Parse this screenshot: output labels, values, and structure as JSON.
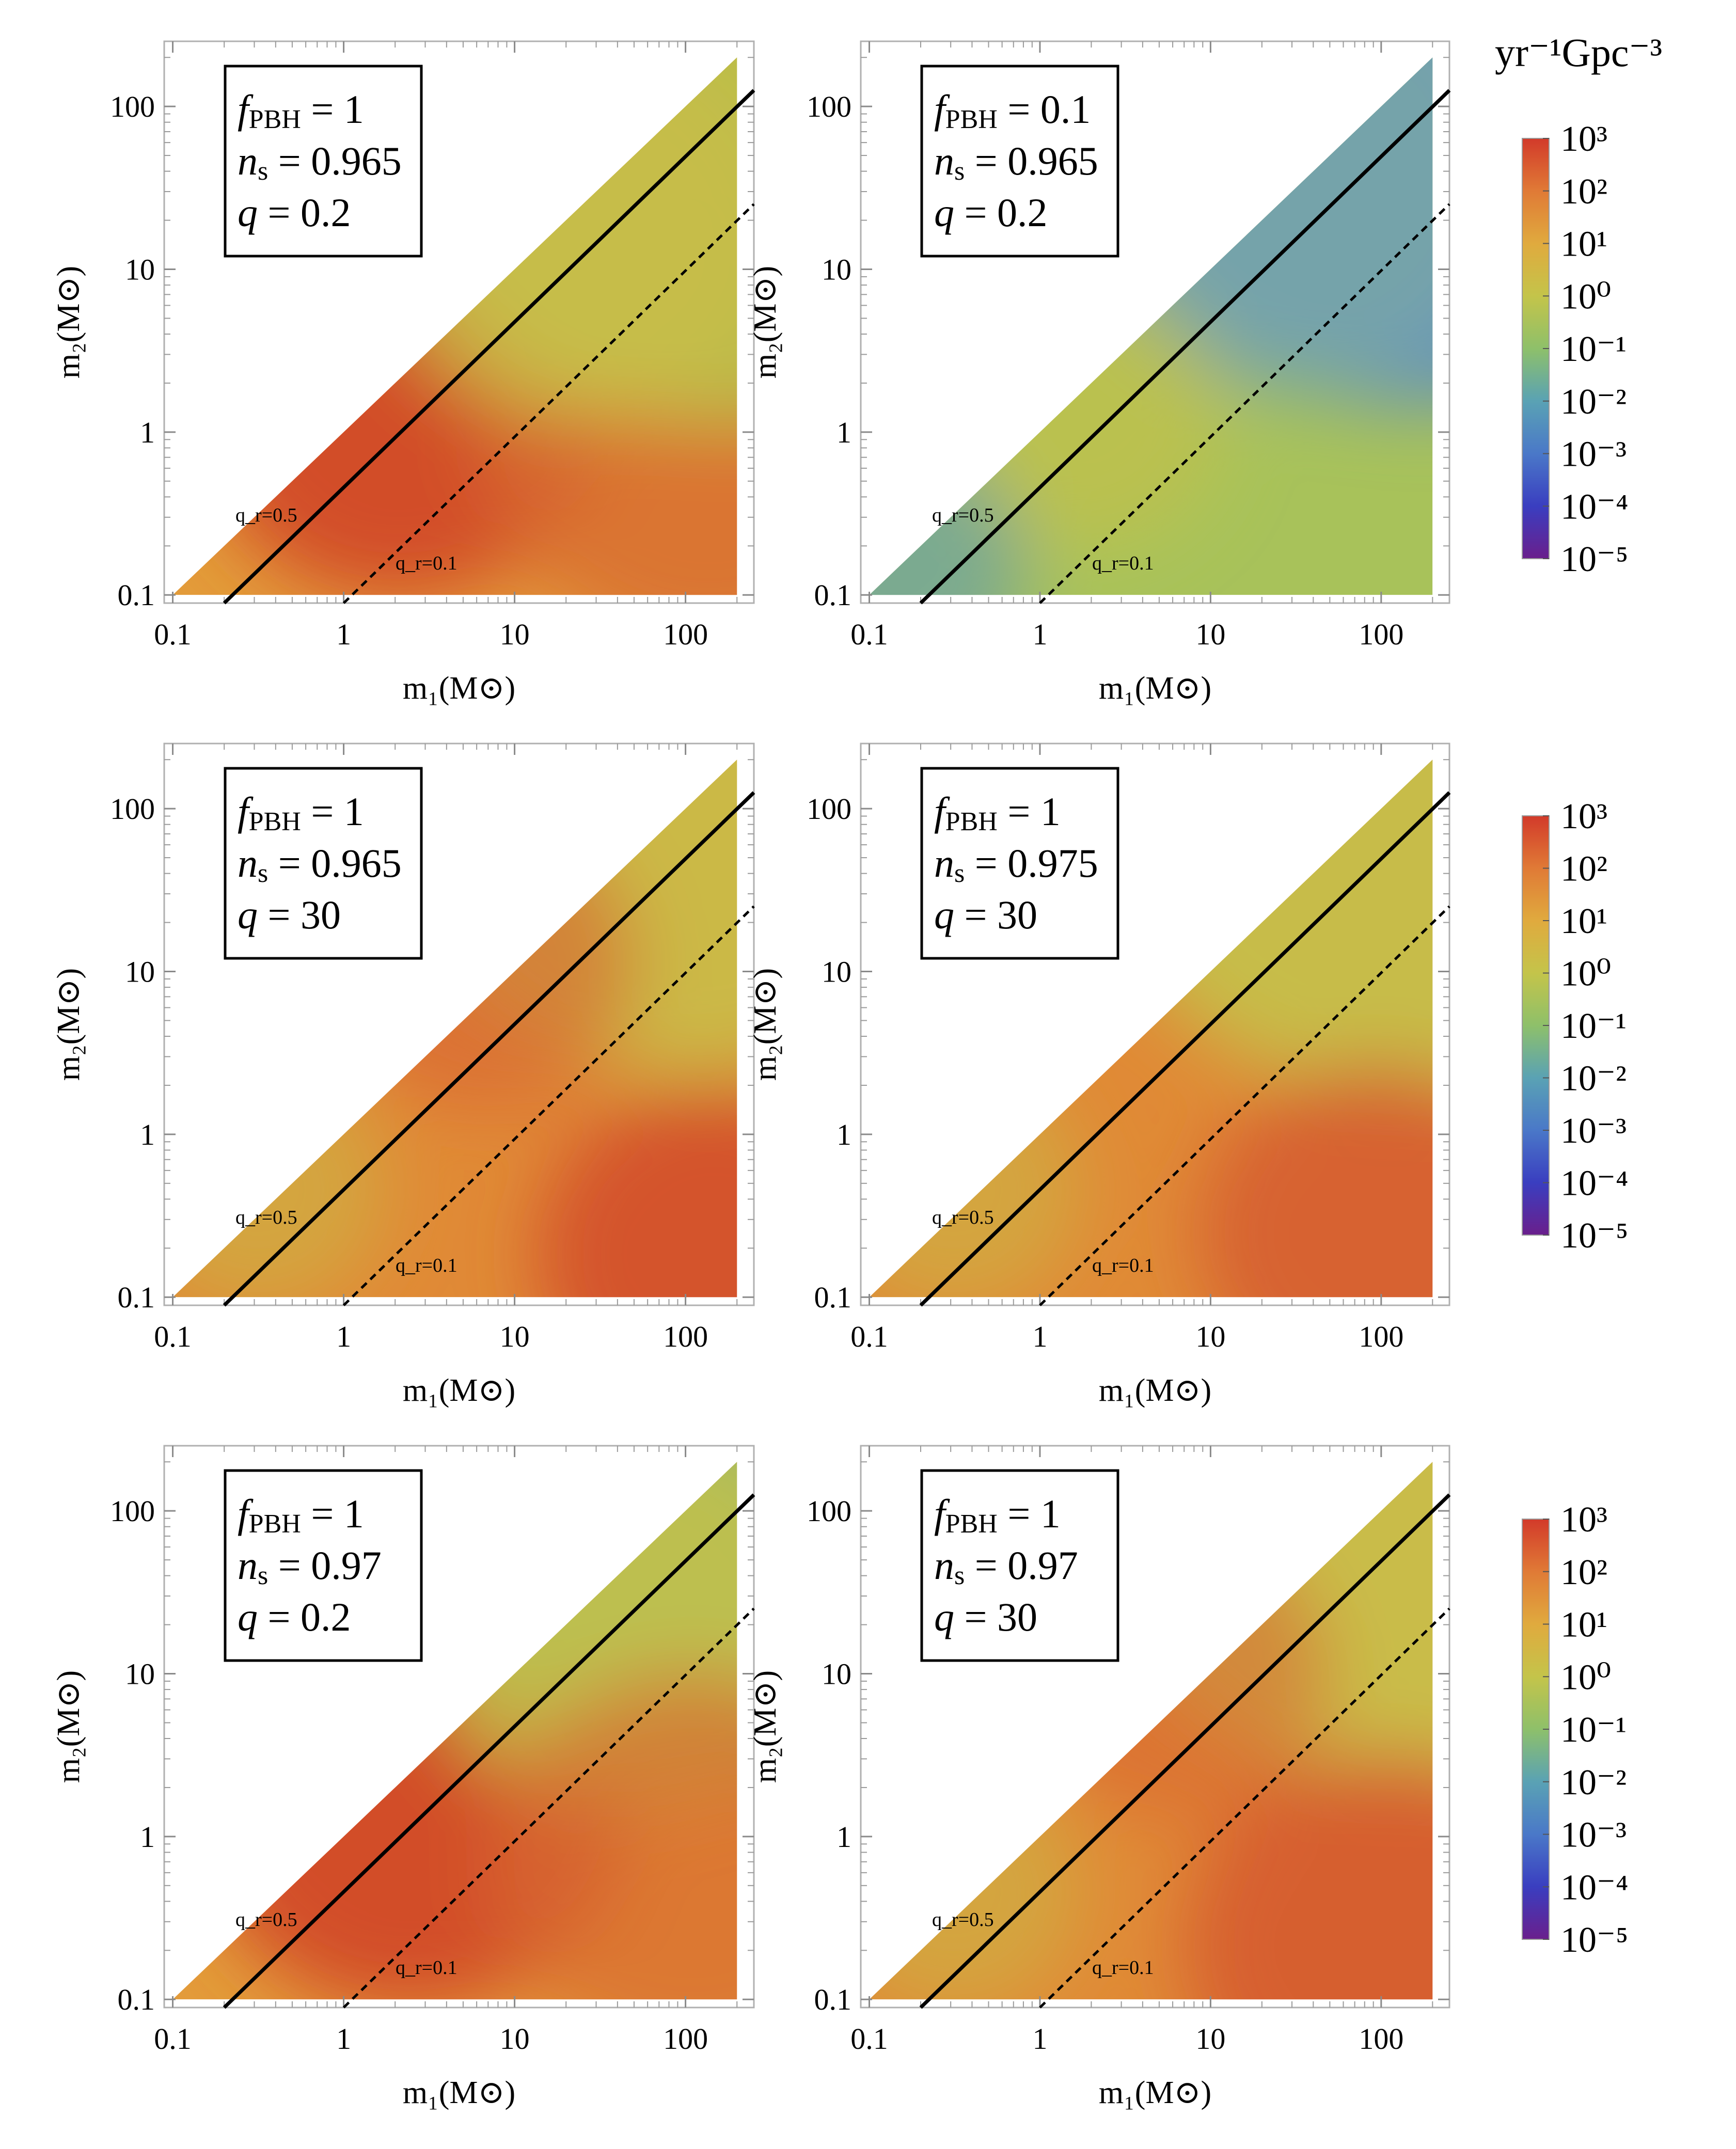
{
  "colorbar": {
    "unit_label": "yr⁻¹Gpc⁻³",
    "tick_labels": [
      "10³",
      "10²",
      "10¹",
      "10⁰",
      "10⁻¹",
      "10⁻²",
      "10⁻³",
      "10⁻⁴",
      "10⁻⁵"
    ],
    "range_log10": [
      -5,
      3
    ],
    "colors": [
      "#6a1f8c",
      "#3a3ec0",
      "#4a78c8",
      "#5aa2b4",
      "#8ec06a",
      "#c4c44a",
      "#e0aa3e",
      "#e07a36",
      "#d23a2a"
    ]
  },
  "axis": {
    "xlabel": "m₁(M⊙)",
    "ylabel": "m₂(M⊙)",
    "ticks": [
      "0.1",
      "1",
      "10",
      "100"
    ],
    "tick_values": [
      0.1,
      1,
      10,
      100
    ],
    "range": [
      0.1,
      200
    ]
  },
  "lines": {
    "solid_label": "q_r=0.5",
    "dashed_label": "q_r=0.1",
    "solid_q": 0.5,
    "dashed_q": 0.1
  },
  "chart_data": [
    {
      "type": "heatmap",
      "panel": "top-left",
      "legend": {
        "fpbh": "1",
        "ns": "0.965",
        "q": "0.2"
      },
      "xlabel": "m₁(M⊙)",
      "ylabel": "m₂(M⊙)",
      "xlim": [
        0.1,
        200
      ],
      "ylim": [
        0.1,
        200
      ],
      "log": true
    },
    {
      "type": "heatmap",
      "panel": "top-right",
      "legend": {
        "fpbh": "0.1",
        "ns": "0.965",
        "q": "0.2"
      },
      "xlabel": "m₁(M⊙)",
      "ylabel": "m₂(M⊙)",
      "xlim": [
        0.1,
        200
      ],
      "ylim": [
        0.1,
        200
      ],
      "log": true
    },
    {
      "type": "heatmap",
      "panel": "middle-left",
      "legend": {
        "fpbh": "1",
        "ns": "0.965",
        "q": "30"
      },
      "xlabel": "m₁(M⊙)",
      "ylabel": "m₂(M⊙)",
      "xlim": [
        0.1,
        200
      ],
      "ylim": [
        0.1,
        200
      ],
      "log": true
    },
    {
      "type": "heatmap",
      "panel": "middle-right",
      "legend": {
        "fpbh": "1",
        "ns": "0.975",
        "q": "30"
      },
      "xlabel": "m₁(M⊙)",
      "ylabel": "m₂(M⊙)",
      "xlim": [
        0.1,
        200
      ],
      "ylim": [
        0.1,
        200
      ],
      "log": true
    },
    {
      "type": "heatmap",
      "panel": "bottom-left",
      "legend": {
        "fpbh": "1",
        "ns": "0.97",
        "q": "0.2"
      },
      "xlabel": "m₁(M⊙)",
      "ylabel": "m₂(M⊙)",
      "xlim": [
        0.1,
        200
      ],
      "ylim": [
        0.1,
        200
      ],
      "log": true
    },
    {
      "type": "heatmap",
      "panel": "bottom-right",
      "legend": {
        "fpbh": "1",
        "ns": "0.97",
        "q": "30"
      },
      "xlabel": "m₁(M⊙)",
      "ylabel": "m₂(M⊙)",
      "xlim": [
        0.1,
        200
      ],
      "ylim": [
        0.1,
        200
      ],
      "log": true
    }
  ]
}
